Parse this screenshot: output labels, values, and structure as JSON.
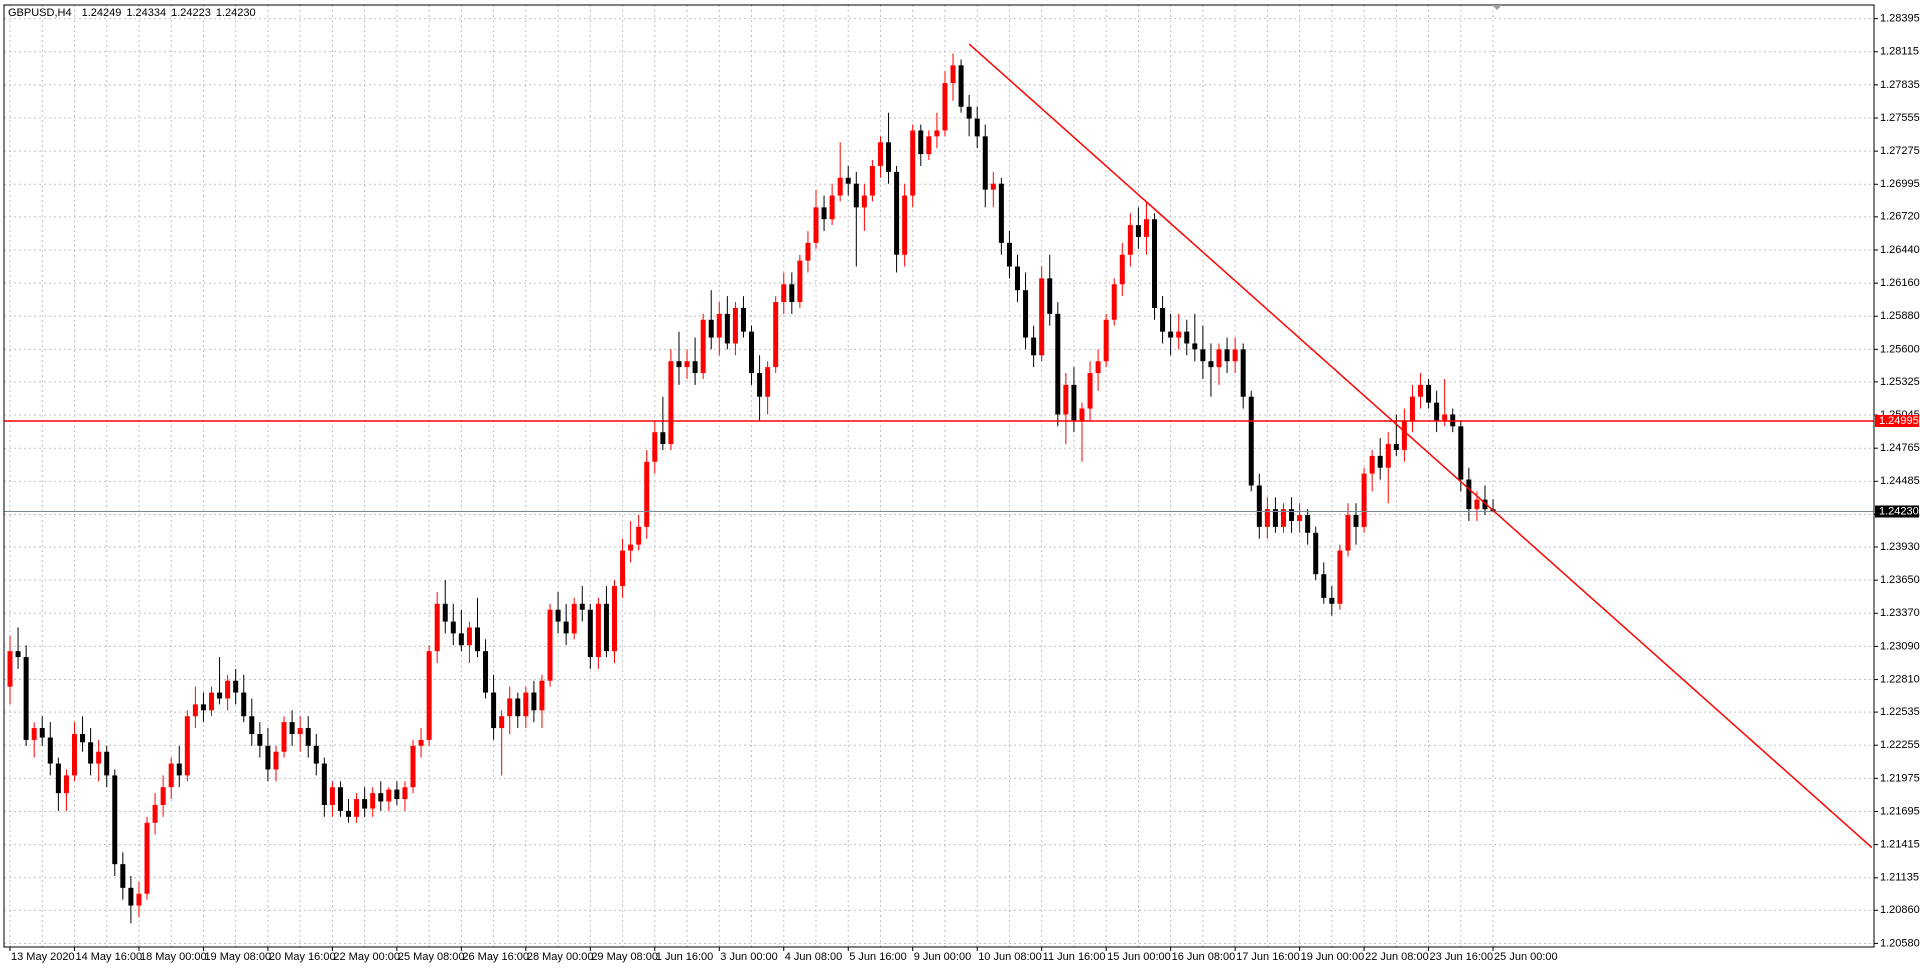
{
  "chart_data": {
    "type": "candlestick",
    "symbol": "GBPUSD,H4",
    "info_labels": [
      "1.24249",
      "1.24334",
      "1.24223",
      "1.24230"
    ],
    "up_color": "#ff0000",
    "down_color": "#000000",
    "grid": true,
    "ylim": [
      1.2055,
      1.2851
    ],
    "yticks": [
      1.28395,
      1.28115,
      1.27835,
      1.27555,
      1.27275,
      1.26995,
      {
        "value": 1.2672,
        "label": "1.26720"
      },
      {
        "value": 1.2644,
        "label": "1.26440"
      },
      {
        "value": 1.2616,
        "label": "1.26160"
      },
      {
        "value": 1.2588,
        "label": "1.25880"
      },
      {
        "value": 1.256,
        "label": "1.25600"
      },
      1.25325,
      1.25045,
      1.24765,
      1.24485,
      1.24205,
      {
        "value": 1.2393,
        "label": "1.23930"
      },
      {
        "value": 1.2365,
        "label": "1.23650"
      },
      {
        "value": 1.2337,
        "label": "1.23370"
      },
      {
        "value": 1.2309,
        "label": "1.23090"
      },
      {
        "value": 1.2281,
        "label": "1.22810"
      },
      1.22535,
      1.22255,
      1.21975,
      1.21695,
      1.21415,
      1.21135,
      {
        "value": 1.2086,
        "label": "1.20860"
      },
      {
        "value": 1.2058,
        "label": "1.20580"
      }
    ],
    "hlines": [
      {
        "value": 1.24995,
        "label": "1.24995",
        "color": "#ff0000",
        "label_color": "#ff0000"
      },
      {
        "value": 1.2423,
        "label": "1.24230",
        "color": "#778899",
        "label_color": "#000000"
      }
    ],
    "trendline": {
      "x": [
        119,
        231
      ],
      "y": [
        1.2818,
        1.2139
      ],
      "color": "#ff0000"
    },
    "categories": [
      "13 May 2020",
      null,
      null,
      null,
      null,
      null,
      null,
      null,
      "14 May 16:00",
      null,
      null,
      null,
      null,
      null,
      null,
      null,
      "18 May 00:00",
      null,
      null,
      null,
      null,
      null,
      null,
      null,
      "19 May 08:00",
      null,
      null,
      null,
      null,
      null,
      null,
      null,
      "20 May 16:00",
      null,
      null,
      null,
      null,
      null,
      null,
      null,
      "22 May 00:00",
      null,
      null,
      null,
      null,
      null,
      null,
      null,
      "25 May 08:00",
      null,
      null,
      null,
      null,
      null,
      null,
      null,
      "26 May 16:00",
      null,
      null,
      null,
      null,
      null,
      null,
      null,
      "28 May 00:00",
      null,
      null,
      null,
      null,
      null,
      null,
      null,
      "29 May 08:00",
      null,
      null,
      null,
      null,
      null,
      null,
      null,
      "1 Jun 16:00",
      null,
      null,
      null,
      null,
      null,
      null,
      null,
      "3 Jun 00:00",
      null,
      null,
      null,
      null,
      null,
      null,
      null,
      "4 Jun 08:00",
      null,
      null,
      null,
      null,
      null,
      null,
      null,
      "5 Jun 16:00",
      null,
      null,
      null,
      null,
      null,
      null,
      null,
      "9 Jun 00:00",
      null,
      null,
      null,
      null,
      null,
      null,
      null,
      "10 Jun 08:00",
      null,
      null,
      null,
      null,
      null,
      null,
      null,
      "11 Jun 16:00",
      null,
      null,
      null,
      null,
      null,
      null,
      null,
      "15 Jun 00:00",
      null,
      null,
      null,
      null,
      null,
      null,
      null,
      "16 Jun 08:00",
      null,
      null,
      null,
      null,
      null,
      null,
      null,
      "17 Jun 16:00",
      null,
      null,
      null,
      null,
      null,
      null,
      null,
      "19 Jun 00:00",
      null,
      null,
      null,
      null,
      null,
      null,
      null,
      "22 Jun 08:00",
      null,
      null,
      null,
      null,
      null,
      null,
      null,
      "23 Jun 16:00",
      null,
      null,
      null,
      null,
      null,
      null,
      null,
      "25 Jun 00:00"
    ],
    "ohlc": [
      [
        1.2275,
        1.2318,
        1.226,
        1.2305
      ],
      [
        1.2305,
        1.2325,
        1.229,
        1.23
      ],
      [
        1.23,
        1.231,
        1.2225,
        1.223
      ],
      [
        1.223,
        1.2245,
        1.2215,
        1.224
      ],
      [
        1.224,
        1.225,
        1.2225,
        1.2232
      ],
      [
        1.2232,
        1.2245,
        1.22,
        1.221
      ],
      [
        1.221,
        1.2215,
        1.217,
        1.2185
      ],
      [
        1.2185,
        1.2205,
        1.217,
        1.22
      ],
      [
        1.22,
        1.2245,
        1.2195,
        1.2235
      ],
      [
        1.2235,
        1.225,
        1.222,
        1.2228
      ],
      [
        1.2228,
        1.224,
        1.22,
        1.221
      ],
      [
        1.221,
        1.223,
        1.2195,
        1.222
      ],
      [
        1.222,
        1.2225,
        1.219,
        1.22
      ],
      [
        1.22,
        1.2205,
        1.2115,
        1.2125
      ],
      [
        1.2125,
        1.2135,
        1.2095,
        1.2105
      ],
      [
        1.2105,
        1.2115,
        1.2075,
        1.209
      ],
      [
        1.209,
        1.211,
        1.208,
        1.21
      ],
      [
        1.21,
        1.2165,
        1.2095,
        1.216
      ],
      [
        1.216,
        1.2185,
        1.215,
        1.2175
      ],
      [
        1.2175,
        1.22,
        1.2165,
        1.219
      ],
      [
        1.219,
        1.2215,
        1.218,
        1.221
      ],
      [
        1.221,
        1.2225,
        1.219,
        1.22
      ],
      [
        1.22,
        1.2255,
        1.2195,
        1.225
      ],
      [
        1.225,
        1.2275,
        1.224,
        1.226
      ],
      [
        1.226,
        1.227,
        1.2245,
        1.2255
      ],
      [
        1.2255,
        1.2275,
        1.225,
        1.227
      ],
      [
        1.227,
        1.23,
        1.226,
        1.2265
      ],
      [
        1.2265,
        1.2285,
        1.2255,
        1.228
      ],
      [
        1.228,
        1.229,
        1.226,
        1.227
      ],
      [
        1.227,
        1.2285,
        1.2245,
        1.225
      ],
      [
        1.225,
        1.2265,
        1.2225,
        1.2235
      ],
      [
        1.2235,
        1.2245,
        1.2215,
        1.2225
      ],
      [
        1.2225,
        1.224,
        1.2195,
        1.2205
      ],
      [
        1.2205,
        1.2225,
        1.2195,
        1.222
      ],
      [
        1.222,
        1.225,
        1.2215,
        1.2245
      ],
      [
        1.2245,
        1.2255,
        1.2225,
        1.2235
      ],
      [
        1.2235,
        1.225,
        1.222,
        1.224
      ],
      [
        1.224,
        1.225,
        1.2215,
        1.2225
      ],
      [
        1.2225,
        1.2235,
        1.22,
        1.221
      ],
      [
        1.221,
        1.2215,
        1.2165,
        1.2175
      ],
      [
        1.2175,
        1.2195,
        1.2165,
        1.219
      ],
      [
        1.219,
        1.2195,
        1.2165,
        1.217
      ],
      [
        1.217,
        1.218,
        1.216,
        1.2165
      ],
      [
        1.2165,
        1.2185,
        1.216,
        1.218
      ],
      [
        1.218,
        1.219,
        1.2165,
        1.2172
      ],
      [
        1.2172,
        1.219,
        1.2165,
        1.2185
      ],
      [
        1.2185,
        1.2195,
        1.217,
        1.2178
      ],
      [
        1.2178,
        1.219,
        1.217,
        1.2188
      ],
      [
        1.2188,
        1.2195,
        1.2175,
        1.218
      ],
      [
        1.218,
        1.2195,
        1.217,
        1.219
      ],
      [
        1.219,
        1.223,
        1.2185,
        1.2225
      ],
      [
        1.2225,
        1.224,
        1.2215,
        1.223
      ],
      [
        1.223,
        1.231,
        1.2225,
        1.2305
      ],
      [
        1.2305,
        1.2355,
        1.2295,
        1.2345
      ],
      [
        1.2345,
        1.2365,
        1.232,
        1.233
      ],
      [
        1.233,
        1.2345,
        1.231,
        1.232
      ],
      [
        1.232,
        1.234,
        1.2305,
        1.231
      ],
      [
        1.231,
        1.233,
        1.2295,
        1.2325
      ],
      [
        1.2325,
        1.235,
        1.23,
        1.2305
      ],
      [
        1.2305,
        1.2315,
        1.2265,
        1.227
      ],
      [
        1.227,
        1.2285,
        1.223,
        1.224
      ],
      [
        1.224,
        1.2255,
        1.22,
        1.225
      ],
      [
        1.225,
        1.2275,
        1.2235,
        1.2265
      ],
      [
        1.2265,
        1.227,
        1.224,
        1.225
      ],
      [
        1.225,
        1.2275,
        1.224,
        1.227
      ],
      [
        1.227,
        1.228,
        1.2245,
        1.2255
      ],
      [
        1.2255,
        1.2285,
        1.224,
        1.228
      ],
      [
        1.228,
        1.2345,
        1.2275,
        1.234
      ],
      [
        1.234,
        1.2355,
        1.232,
        1.233
      ],
      [
        1.233,
        1.2345,
        1.231,
        1.232
      ],
      [
        1.232,
        1.235,
        1.2315,
        1.2345
      ],
      [
        1.2345,
        1.236,
        1.233,
        1.234
      ],
      [
        1.234,
        1.2345,
        1.229,
        1.23
      ],
      [
        1.23,
        1.235,
        1.229,
        1.2345
      ],
      [
        1.2345,
        1.236,
        1.23,
        1.2305
      ],
      [
        1.2305,
        1.2365,
        1.2295,
        1.236
      ],
      [
        1.236,
        1.24,
        1.235,
        1.239
      ],
      [
        1.239,
        1.2415,
        1.238,
        1.2395
      ],
      [
        1.2395,
        1.242,
        1.239,
        1.241
      ],
      [
        1.241,
        1.2475,
        1.24,
        1.2465
      ],
      [
        1.2465,
        1.25,
        1.2455,
        1.249
      ],
      [
        1.249,
        1.252,
        1.2475,
        1.248
      ],
      [
        1.248,
        1.256,
        1.2475,
        1.255
      ],
      [
        1.255,
        1.2575,
        1.253,
        1.2545
      ],
      [
        1.2545,
        1.256,
        1.2535,
        1.255
      ],
      [
        1.255,
        1.257,
        1.253,
        1.254
      ],
      [
        1.254,
        1.259,
        1.2535,
        1.2585
      ],
      [
        1.2585,
        1.261,
        1.256,
        1.257
      ],
      [
        1.257,
        1.26,
        1.2555,
        1.259
      ],
      [
        1.259,
        1.2605,
        1.256,
        1.2565
      ],
      [
        1.2565,
        1.26,
        1.2555,
        1.2595
      ],
      [
        1.2595,
        1.2605,
        1.257,
        1.2575
      ],
      [
        1.2575,
        1.258,
        1.253,
        1.254
      ],
      [
        1.254,
        1.2555,
        1.25,
        1.252
      ],
      [
        1.252,
        1.255,
        1.2505,
        1.2545
      ],
      [
        1.2545,
        1.2605,
        1.254,
        1.26
      ],
      [
        1.26,
        1.2625,
        1.259,
        1.2615
      ],
      [
        1.2615,
        1.2625,
        1.259,
        1.26
      ],
      [
        1.26,
        1.264,
        1.2595,
        1.2635
      ],
      [
        1.2635,
        1.266,
        1.2625,
        1.265
      ],
      [
        1.265,
        1.2695,
        1.2645,
        1.268
      ],
      [
        1.268,
        1.269,
        1.266,
        1.267
      ],
      [
        1.267,
        1.27,
        1.2665,
        1.269
      ],
      [
        1.269,
        1.2735,
        1.2685,
        1.2705
      ],
      [
        1.2705,
        1.2715,
        1.269,
        1.27
      ],
      [
        1.27,
        1.271,
        1.263,
        1.268
      ],
      [
        1.268,
        1.27,
        1.266,
        1.269
      ],
      [
        1.269,
        1.272,
        1.2685,
        1.2715
      ],
      [
        1.2715,
        1.274,
        1.2705,
        1.2735
      ],
      [
        1.2735,
        1.276,
        1.27,
        1.271
      ],
      [
        1.271,
        1.2715,
        1.2625,
        1.264
      ],
      [
        1.264,
        1.27,
        1.263,
        1.269
      ],
      [
        1.269,
        1.275,
        1.268,
        1.2745
      ],
      [
        1.2745,
        1.275,
        1.2715,
        1.2725
      ],
      [
        1.2725,
        1.2745,
        1.272,
        1.274
      ],
      [
        1.274,
        1.276,
        1.273,
        1.2745
      ],
      [
        1.2745,
        1.2795,
        1.274,
        1.2785
      ],
      [
        1.2785,
        1.281,
        1.277,
        1.28
      ],
      [
        1.28,
        1.2805,
        1.276,
        1.2765
      ],
      [
        1.2765,
        1.2775,
        1.274,
        1.2755
      ],
      [
        1.2755,
        1.2765,
        1.273,
        1.274
      ],
      [
        1.274,
        1.275,
        1.268,
        1.2695
      ],
      [
        1.2695,
        1.271,
        1.268,
        1.27
      ],
      [
        1.27,
        1.2705,
        1.264,
        1.265
      ],
      [
        1.265,
        1.266,
        1.262,
        1.263
      ],
      [
        1.263,
        1.264,
        1.26,
        1.261
      ],
      [
        1.261,
        1.2625,
        1.256,
        1.257
      ],
      [
        1.257,
        1.258,
        1.2545,
        1.2555
      ],
      [
        1.2555,
        1.263,
        1.255,
        1.262
      ],
      [
        1.262,
        1.264,
        1.258,
        1.259
      ],
      [
        1.259,
        1.26,
        1.2495,
        1.2505
      ],
      [
        1.2505,
        1.254,
        1.248,
        1.253
      ],
      [
        1.253,
        1.2545,
        1.249,
        1.25
      ],
      [
        1.25,
        1.2515,
        1.2465,
        1.251
      ],
      [
        1.251,
        1.255,
        1.25,
        1.254
      ],
      [
        1.254,
        1.256,
        1.2525,
        1.255
      ],
      [
        1.255,
        1.259,
        1.2545,
        1.2585
      ],
      [
        1.2585,
        1.262,
        1.258,
        1.2615
      ],
      [
        1.2615,
        1.265,
        1.2605,
        1.264
      ],
      [
        1.264,
        1.2675,
        1.263,
        1.2665
      ],
      [
        1.2665,
        1.268,
        1.2645,
        1.2655
      ],
      [
        1.2655,
        1.2685,
        1.264,
        1.267
      ],
      [
        1.267,
        1.2675,
        1.2585,
        1.2595
      ],
      [
        1.2595,
        1.2605,
        1.2565,
        1.2575
      ],
      [
        1.2575,
        1.259,
        1.2555,
        1.257
      ],
      [
        1.257,
        1.259,
        1.256,
        1.2575
      ],
      [
        1.2575,
        1.2585,
        1.2555,
        1.2565
      ],
      [
        1.2565,
        1.259,
        1.255,
        1.256
      ],
      [
        1.256,
        1.258,
        1.2535,
        1.255
      ],
      [
        1.255,
        1.2565,
        1.252,
        1.2545
      ],
      [
        1.2545,
        1.2565,
        1.253,
        1.256
      ],
      [
        1.256,
        1.257,
        1.254,
        1.255
      ],
      [
        1.255,
        1.257,
        1.254,
        1.256
      ],
      [
        1.256,
        1.2565,
        1.251,
        1.252
      ],
      [
        1.252,
        1.2525,
        1.244,
        1.2445
      ],
      [
        1.2445,
        1.2455,
        1.24,
        1.241
      ],
      [
        1.241,
        1.2435,
        1.24,
        1.2425
      ],
      [
        1.2425,
        1.2435,
        1.2405,
        1.241
      ],
      [
        1.241,
        1.243,
        1.2405,
        1.2425
      ],
      [
        1.2425,
        1.2435,
        1.2405,
        1.2415
      ],
      [
        1.2415,
        1.243,
        1.2405,
        1.242
      ],
      [
        1.242,
        1.2425,
        1.2395,
        1.2405
      ],
      [
        1.2405,
        1.241,
        1.2365,
        1.237
      ],
      [
        1.237,
        1.238,
        1.2345,
        1.235
      ],
      [
        1.235,
        1.236,
        1.2335,
        1.2345
      ],
      [
        1.2345,
        1.2395,
        1.234,
        1.239
      ],
      [
        1.239,
        1.243,
        1.2385,
        1.242
      ],
      [
        1.242,
        1.243,
        1.2395,
        1.241
      ],
      [
        1.241,
        1.246,
        1.2405,
        1.2455
      ],
      [
        1.2455,
        1.2475,
        1.244,
        1.247
      ],
      [
        1.247,
        1.2485,
        1.245,
        1.246
      ],
      [
        1.246,
        1.249,
        1.243,
        1.248
      ],
      [
        1.248,
        1.2505,
        1.247,
        1.2475
      ],
      [
        1.2475,
        1.251,
        1.2465,
        1.25
      ],
      [
        1.25,
        1.253,
        1.249,
        1.252
      ],
      [
        1.252,
        1.254,
        1.251,
        1.253
      ],
      [
        1.253,
        1.2535,
        1.251,
        1.2515
      ],
      [
        1.2515,
        1.2525,
        1.249,
        1.25
      ],
      [
        1.25,
        1.2535,
        1.2495,
        1.2505
      ],
      [
        1.2505,
        1.251,
        1.249,
        1.2495
      ],
      [
        1.2495,
        1.25,
        1.244,
        1.245
      ],
      [
        1.245,
        1.246,
        1.2415,
        1.2425
      ],
      [
        1.2425,
        1.244,
        1.2415,
        1.2433
      ],
      [
        1.2433,
        1.2445,
        1.242,
        1.24249
      ],
      [
        1.24249,
        1.24334,
        1.24223,
        1.2423
      ]
    ]
  }
}
